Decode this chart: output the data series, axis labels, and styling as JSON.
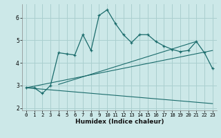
{
  "xlabel": "Humidex (Indice chaleur)",
  "bg_color": "#cce8e8",
  "grid_color": "#aacfcf",
  "line_color": "#1a6b6b",
  "xlim": [
    -0.5,
    23.5
  ],
  "ylim": [
    1.9,
    6.6
  ],
  "yticks": [
    2,
    3,
    4,
    5,
    6
  ],
  "xticks": [
    0,
    1,
    2,
    3,
    4,
    5,
    6,
    7,
    8,
    9,
    10,
    11,
    12,
    13,
    14,
    15,
    16,
    17,
    18,
    19,
    20,
    21,
    22,
    23
  ],
  "series1_x": [
    0,
    1,
    2,
    3,
    4,
    5,
    6,
    7,
    8,
    9,
    10,
    11,
    12,
    13,
    14,
    15,
    16,
    17,
    18,
    19,
    20,
    21,
    22,
    23
  ],
  "series1_y": [
    2.9,
    2.9,
    2.65,
    3.0,
    4.45,
    4.4,
    4.35,
    5.25,
    4.55,
    6.1,
    6.35,
    5.75,
    5.25,
    4.9,
    5.25,
    5.25,
    4.95,
    4.75,
    4.6,
    4.5,
    4.55,
    4.95,
    4.45,
    3.75
  ],
  "series2_x": [
    0,
    23
  ],
  "series2_y": [
    2.9,
    4.55
  ],
  "series3_x": [
    0,
    23
  ],
  "series3_y": [
    2.9,
    2.2
  ],
  "series4_x": [
    4,
    21
  ],
  "series4_y": [
    3.05,
    4.95
  ],
  "marker": "+"
}
